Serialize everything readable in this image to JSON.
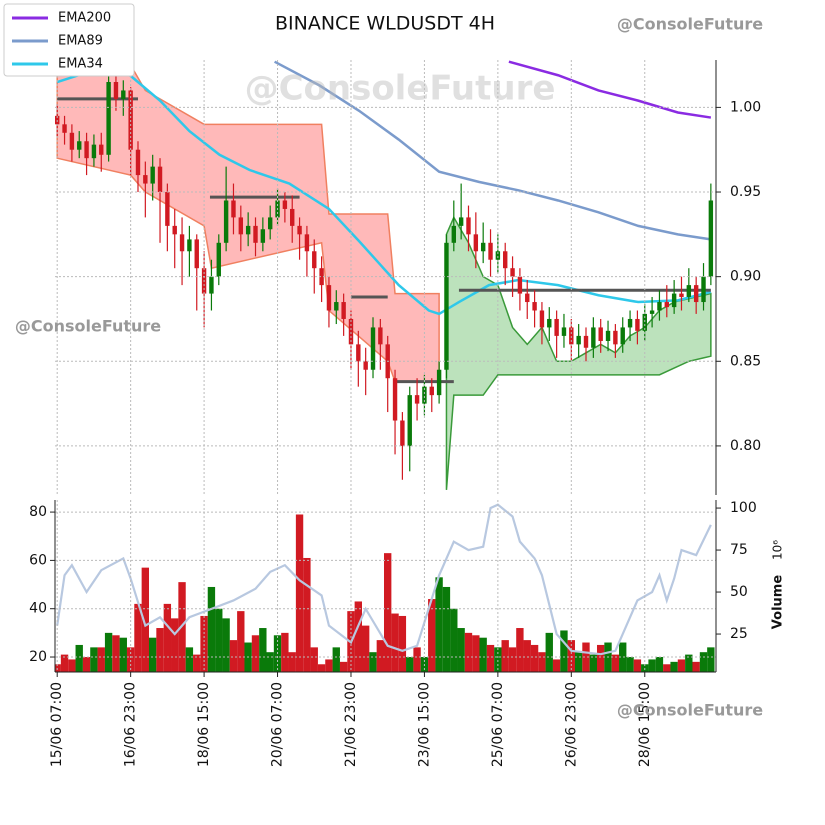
{
  "chart_data": {
    "type": "candlestick",
    "title": "BINANCE WLDUSDT 4H",
    "watermarks": [
      "@ConsoleFuture",
      "@ConsoleFuture",
      "@ConsoleFuture",
      "@ConsoleFuture"
    ],
    "grid": true,
    "up_color": "#0a7a0a",
    "down_color": "#d11a22",
    "xlim": [
      -0.3,
      89.7
    ],
    "xticks": [
      {
        "value": 0,
        "label": "15/06 07:00"
      },
      {
        "value": 10,
        "label": "16/06 23:00"
      },
      {
        "value": 20,
        "label": "18/06 15:00"
      },
      {
        "value": 30,
        "label": "20/06 07:00"
      },
      {
        "value": 40,
        "label": "21/06 23:00"
      },
      {
        "value": 50,
        "label": "23/06 15:00"
      },
      {
        "value": 60,
        "label": "25/06 07:00"
      },
      {
        "value": 70,
        "label": "26/06 23:00"
      },
      {
        "value": 80,
        "label": "28/06 15:00"
      }
    ],
    "ylim": [
      0.771,
      1.028
    ],
    "yticks": [
      {
        "value": 1.0,
        "label": "1.00"
      },
      0.95,
      {
        "value": 0.9,
        "label": "0.90"
      },
      0.85,
      {
        "value": 0.8,
        "label": "0.80"
      }
    ],
    "open": [
      0.995,
      0.99,
      0.985,
      0.975,
      0.98,
      0.97,
      0.978,
      0.972,
      1.015,
      1.005,
      1.01,
      0.975,
      0.96,
      0.955,
      0.965,
      0.95,
      0.93,
      0.925,
      0.915,
      0.922,
      0.905,
      0.89,
      0.9,
      0.92,
      0.945,
      0.935,
      0.925,
      0.93,
      0.92,
      0.928,
      0.935,
      0.945,
      0.94,
      0.93,
      0.925,
      0.915,
      0.905,
      0.895,
      0.88,
      0.885,
      0.875,
      0.86,
      0.85,
      0.845,
      0.87,
      0.86,
      0.84,
      0.815,
      0.8,
      0.83,
      0.825,
      0.835,
      0.83,
      0.845,
      0.92,
      0.93,
      0.935,
      0.925,
      0.915,
      0.92,
      0.91,
      0.915,
      0.905,
      0.9,
      0.89,
      0.885,
      0.88,
      0.87,
      0.875,
      0.865,
      0.87,
      0.86,
      0.865,
      0.858,
      0.87,
      0.862,
      0.868,
      0.86,
      0.87,
      0.875,
      0.868,
      0.878,
      0.88,
      0.885,
      0.882,
      0.89,
      0.888,
      0.895,
      0.885,
      0.9
    ],
    "high": [
      1.002,
      0.995,
      0.99,
      0.986,
      0.985,
      0.984,
      0.985,
      1.022,
      1.02,
      1.016,
      1.012,
      0.98,
      0.968,
      0.972,
      0.97,
      0.955,
      0.94,
      0.935,
      0.93,
      0.925,
      0.915,
      0.91,
      0.925,
      0.965,
      0.955,
      0.942,
      0.938,
      0.935,
      0.935,
      0.942,
      0.952,
      0.95,
      0.948,
      0.935,
      0.93,
      0.922,
      0.912,
      0.9,
      0.892,
      0.89,
      0.88,
      0.868,
      0.858,
      0.876,
      0.875,
      0.865,
      0.845,
      0.82,
      0.835,
      0.84,
      0.842,
      0.84,
      0.85,
      0.925,
      0.945,
      0.955,
      0.942,
      0.938,
      0.932,
      0.928,
      0.925,
      0.92,
      0.912,
      0.905,
      0.898,
      0.892,
      0.885,
      0.882,
      0.88,
      0.878,
      0.875,
      0.872,
      0.87,
      0.876,
      0.875,
      0.874,
      0.872,
      0.876,
      0.88,
      0.88,
      0.884,
      0.888,
      0.892,
      0.895,
      0.898,
      0.9,
      0.905,
      0.9,
      0.908,
      0.955
    ],
    "low": [
      0.983,
      0.978,
      0.968,
      0.97,
      0.96,
      0.965,
      0.962,
      0.968,
      0.998,
      0.995,
      0.96,
      0.95,
      0.935,
      0.945,
      0.92,
      0.915,
      0.905,
      0.895,
      0.9,
      0.88,
      0.87,
      0.88,
      0.895,
      0.915,
      0.925,
      0.915,
      0.918,
      0.912,
      0.915,
      0.922,
      0.93,
      0.932,
      0.92,
      0.91,
      0.9,
      0.89,
      0.885,
      0.87,
      0.872,
      0.865,
      0.845,
      0.835,
      0.83,
      0.84,
      0.845,
      0.82,
      0.795,
      0.78,
      0.785,
      0.815,
      0.818,
      0.82,
      0.825,
      0.84,
      0.915,
      0.922,
      0.915,
      0.905,
      0.908,
      0.9,
      0.902,
      0.895,
      0.888,
      0.88,
      0.875,
      0.87,
      0.86,
      0.862,
      0.852,
      0.858,
      0.85,
      0.852,
      0.85,
      0.852,
      0.855,
      0.856,
      0.852,
      0.855,
      0.862,
      0.86,
      0.862,
      0.87,
      0.874,
      0.876,
      0.878,
      0.88,
      0.885,
      0.878,
      0.88,
      0.895
    ],
    "close": [
      0.99,
      0.985,
      0.975,
      0.98,
      0.97,
      0.978,
      0.972,
      1.015,
      1.005,
      1.01,
      0.975,
      0.96,
      0.955,
      0.965,
      0.95,
      0.93,
      0.925,
      0.915,
      0.922,
      0.905,
      0.89,
      0.9,
      0.92,
      0.945,
      0.935,
      0.925,
      0.93,
      0.92,
      0.928,
      0.935,
      0.945,
      0.94,
      0.93,
      0.925,
      0.915,
      0.905,
      0.895,
      0.88,
      0.885,
      0.875,
      0.86,
      0.85,
      0.845,
      0.87,
      0.86,
      0.84,
      0.815,
      0.8,
      0.83,
      0.825,
      0.835,
      0.83,
      0.845,
      0.92,
      0.93,
      0.935,
      0.925,
      0.915,
      0.92,
      0.91,
      0.915,
      0.905,
      0.9,
      0.89,
      0.885,
      0.88,
      0.87,
      0.875,
      0.865,
      0.87,
      0.86,
      0.865,
      0.858,
      0.87,
      0.862,
      0.868,
      0.86,
      0.87,
      0.875,
      0.868,
      0.878,
      0.88,
      0.885,
      0.882,
      0.89,
      0.888,
      0.895,
      0.885,
      0.9,
      0.945
    ],
    "series": [
      {
        "name": "EMA200",
        "color": "#8a2be2",
        "x": [
          61.5,
          68.2,
          73.7,
          79.1,
          84.5,
          89
        ],
        "values": [
          1.027,
          1.019,
          1.01,
          1.004,
          0.997,
          0.994
        ]
      },
      {
        "name": "EMA89",
        "color": "#7b9bcc",
        "x": [
          29.6,
          35.7,
          41.1,
          46.5,
          52,
          57.4,
          62.8,
          68.2,
          73.7,
          79.1,
          84.5,
          89
        ],
        "values": [
          1.027,
          1.013,
          0.998,
          0.981,
          0.962,
          0.956,
          0.951,
          0.945,
          0.938,
          0.93,
          0.925,
          0.922
        ]
      },
      {
        "name": "EMA34",
        "color": "#2ec8ea",
        "x": [
          0,
          7.2,
          9.9,
          14,
          18,
          22.1,
          26.2,
          31.6,
          37,
          41.1,
          46.5,
          50.6,
          52,
          54.7,
          58.8,
          62.8,
          68.2,
          73.7,
          79.1,
          84.5,
          89
        ],
        "values": [
          1.015,
          1.025,
          1.019,
          1.004,
          0.986,
          0.972,
          0.963,
          0.955,
          0.94,
          0.921,
          0.895,
          0.88,
          0.878,
          0.885,
          0.895,
          0.898,
          0.895,
          0.889,
          0.885,
          0.886,
          0.891
        ]
      }
    ],
    "levels": [
      {
        "start": 0,
        "end": 11,
        "value": 1.005
      },
      {
        "start": 20.8,
        "end": 33,
        "value": 0.947
      },
      {
        "start": 40,
        "end": 45,
        "value": 0.888
      },
      {
        "start": 46,
        "end": 54,
        "value": 0.838
      },
      {
        "start": 54.7,
        "end": 89,
        "value": 0.892
      }
    ],
    "bands": [
      {
        "color": "#ff8a8a",
        "edge": "#f08060",
        "x": [
          0,
          10,
          12,
          20,
          21,
          36,
          37,
          45,
          46,
          52
        ],
        "upper": [
          1.03,
          1.025,
          1.01,
          0.99,
          0.99,
          0.99,
          0.937,
          0.937,
          0.89,
          0.89
        ],
        "lower": [
          0.97,
          0.96,
          0.95,
          0.93,
          0.905,
          0.92,
          0.88,
          0.85,
          0.838,
          0.838
        ]
      },
      {
        "color": "#8fcf8f",
        "edge": "#3a9a3a",
        "x": [
          53,
          54,
          56,
          58,
          60,
          62,
          64,
          66,
          68,
          70,
          72,
          74,
          76,
          78,
          80,
          82,
          84,
          86,
          88,
          89
        ],
        "upper": [
          0.925,
          0.935,
          0.92,
          0.9,
          0.895,
          0.87,
          0.86,
          0.87,
          0.85,
          0.85,
          0.855,
          0.86,
          0.855,
          0.865,
          0.87,
          0.88,
          0.885,
          0.887,
          0.889,
          0.89
        ],
        "lower": [
          0.774,
          0.83,
          0.83,
          0.83,
          0.842,
          0.842,
          0.842,
          0.842,
          0.842,
          0.842,
          0.842,
          0.842,
          0.842,
          0.842,
          0.842,
          0.842,
          0.846,
          0.85,
          0.852,
          0.853
        ]
      }
    ],
    "volume": {
      "ylim": [
        13.8,
        85
      ],
      "yticks": [
        20,
        40,
        60,
        80
      ],
      "y2lim": [
        2.4,
        104.8
      ],
      "y2ticks": [
        25,
        50,
        75,
        100
      ],
      "y2label": "Volume",
      "y2exponent": "10⁶",
      "values": [
        17,
        21,
        19,
        25,
        20,
        24,
        24,
        30,
        29,
        28,
        24,
        42,
        57,
        28,
        32,
        42,
        36,
        51,
        24,
        21,
        37,
        49,
        40,
        36,
        27,
        39,
        26,
        29,
        32,
        22,
        29,
        30,
        22,
        79,
        61,
        24,
        17,
        19,
        24,
        18,
        39,
        43,
        33,
        22,
        27,
        63,
        38,
        37,
        20,
        24,
        20,
        44,
        53,
        49,
        40,
        32,
        30,
        29,
        28,
        25,
        24,
        27,
        24,
        32,
        27,
        25,
        22,
        30,
        19,
        31,
        27,
        22,
        26,
        21,
        25,
        26,
        21,
        26,
        20,
        19,
        17,
        19,
        20,
        17,
        18,
        19,
        21,
        18,
        22,
        24
      ],
      "line": {
        "color": "#b8c8e0",
        "axis": "y2",
        "x": [
          0,
          1,
          2,
          4,
          6,
          9,
          10,
          12,
          14,
          16,
          18,
          21,
          24,
          27,
          29,
          31,
          33,
          36,
          37,
          40,
          42,
          45,
          47,
          49,
          52,
          54,
          56,
          58,
          59,
          60,
          62,
          63,
          65,
          66,
          68,
          70,
          74,
          76,
          79,
          81,
          82,
          83,
          84,
          85,
          87,
          89
        ],
        "values": [
          30,
          60,
          66,
          50,
          63,
          70,
          58,
          30,
          35,
          25,
          35,
          40,
          45,
          52,
          62,
          66,
          57,
          48,
          30,
          20,
          40,
          18,
          15,
          18,
          60,
          80,
          75,
          77,
          100,
          102,
          95,
          80,
          70,
          60,
          25,
          15,
          13,
          15,
          45,
          50,
          60,
          45,
          58,
          75,
          72,
          90
        ]
      }
    }
  }
}
